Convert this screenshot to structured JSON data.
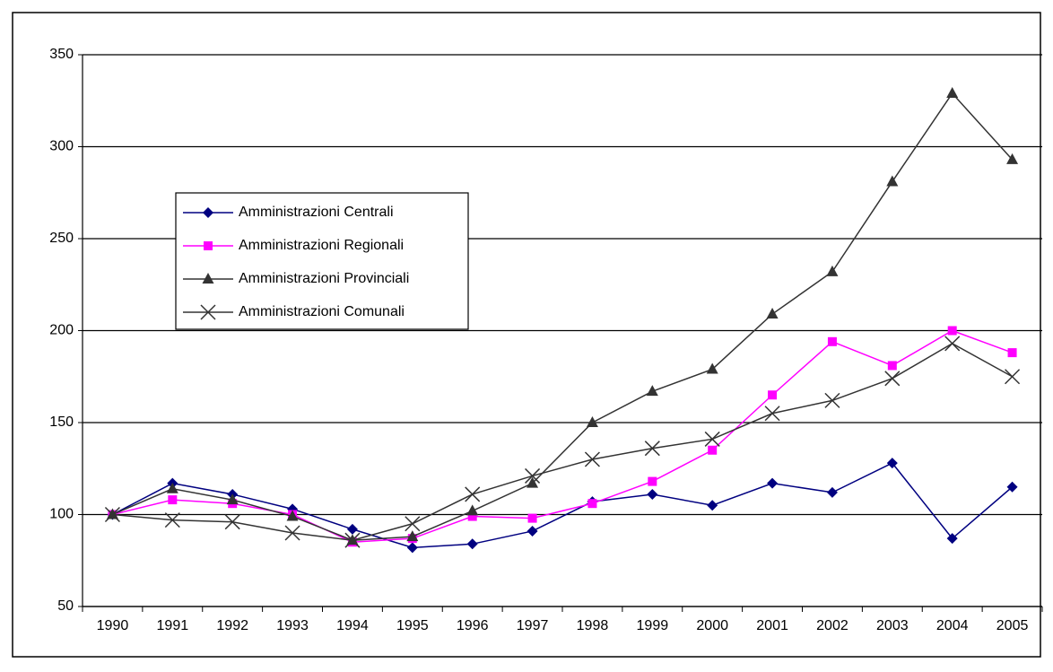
{
  "chart_data": {
    "type": "line",
    "categories": [
      "1990",
      "1991",
      "1992",
      "1993",
      "1994",
      "1995",
      "1996",
      "1997",
      "1998",
      "1999",
      "2000",
      "2001",
      "2002",
      "2003",
      "2004",
      "2005"
    ],
    "series": [
      {
        "name": "Amministrazioni Centrali",
        "color": "#000080",
        "marker": "diamond",
        "values": [
          100,
          117,
          111,
          103,
          92,
          82,
          84,
          91,
          107,
          111,
          105,
          117,
          112,
          128,
          87,
          115
        ]
      },
      {
        "name": "Amministrazioni Regionali",
        "color": "#ff00ff",
        "marker": "square",
        "values": [
          100,
          108,
          106,
          100,
          85,
          87,
          99,
          98,
          106,
          118,
          135,
          165,
          194,
          181,
          200,
          188
        ]
      },
      {
        "name": "Amministrazioni Provinciali",
        "color": "#333333",
        "marker": "triangle",
        "values": [
          100,
          114,
          108,
          99,
          86,
          88,
          102,
          117,
          150,
          167,
          179,
          209,
          232,
          281,
          329,
          293
        ]
      },
      {
        "name": "Amministrazioni Comunali",
        "color": "#333333",
        "marker": "x",
        "values": [
          100,
          97,
          96,
          90,
          86,
          95,
          111,
          121,
          130,
          136,
          141,
          155,
          162,
          174,
          193,
          175
        ]
      }
    ],
    "ylim": [
      50,
      350
    ],
    "yticks": [
      50,
      100,
      150,
      200,
      250,
      300,
      350
    ],
    "grid": true,
    "legend": "left"
  }
}
